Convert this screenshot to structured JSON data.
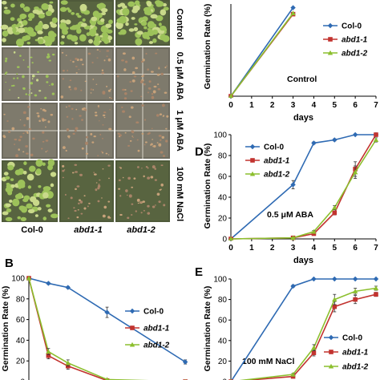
{
  "figure": {
    "plates": {
      "row_labels": [
        "Control",
        "0.5 μM ABA",
        "1 μM ABA",
        "100 mM NaCl"
      ],
      "column_labels": [
        "Col-0",
        "abd1-1",
        "abd1-2"
      ]
    },
    "panels": {
      "B": "B",
      "D": "D",
      "E": "E"
    }
  },
  "colors": {
    "col0": "#2e6ab3",
    "abd1_1": "#c2332f",
    "abd1_2": "#8cbf2e"
  },
  "chart_data": [
    {
      "id": "C",
      "type": "line",
      "title": "",
      "annotation": "Control",
      "xlabel": "days",
      "ylabel": "Germination Rate (%)",
      "xlim": [
        0,
        7
      ],
      "x_ticks": [
        0,
        1,
        2,
        3,
        4,
        5,
        6,
        7
      ],
      "series": [
        {
          "name": "Col-0",
          "x": [
            0,
            3
          ],
          "y": [
            0,
            96
          ]
        },
        {
          "name": "abd1-1",
          "x": [
            0,
            3
          ],
          "y": [
            0,
            89
          ]
        },
        {
          "name": "abd1-2",
          "x": [
            0,
            3
          ],
          "y": [
            0,
            90
          ]
        }
      ]
    },
    {
      "id": "D",
      "type": "line",
      "title": "",
      "annotation": "0.5 μM ABA",
      "xlabel": "days",
      "ylabel": "Germination Rate (%)",
      "xlim": [
        0,
        7
      ],
      "ylim": [
        0,
        100
      ],
      "x_ticks": [
        0,
        1,
        2,
        3,
        4,
        5,
        6,
        7
      ],
      "y_ticks": [
        0,
        20,
        40,
        60,
        80,
        100
      ],
      "series": [
        {
          "name": "Col-0",
          "x": [
            0,
            3,
            4,
            5,
            6,
            7
          ],
          "y": [
            0,
            52,
            92,
            95,
            100,
            100
          ],
          "err": [
            0,
            4,
            1,
            1,
            0,
            0
          ]
        },
        {
          "name": "abd1-1",
          "x": [
            0,
            3,
            4,
            5,
            6,
            7
          ],
          "y": [
            0,
            1,
            5,
            25,
            67,
            100
          ],
          "err": [
            0,
            0,
            1,
            2,
            7,
            0
          ]
        },
        {
          "name": "abd1-2",
          "x": [
            0,
            3,
            4,
            5,
            6,
            7
          ],
          "y": [
            0,
            1,
            7,
            30,
            64,
            95
          ],
          "err": [
            0,
            0,
            1,
            2,
            6,
            2
          ]
        }
      ]
    },
    {
      "id": "B",
      "type": "line",
      "title": "",
      "xlabel": "",
      "ylabel": "Germination Rate (%)",
      "ylim": [
        0,
        100
      ],
      "y_ticks": [
        0,
        20,
        40,
        60,
        80,
        100
      ],
      "series": [
        {
          "name": "Col-0",
          "x": [
            0,
            0.5,
            1,
            2,
            4
          ],
          "y": [
            100,
            95,
            91,
            67,
            19
          ],
          "err": [
            0,
            1,
            1,
            5,
            2
          ]
        },
        {
          "name": "abd1-1",
          "x": [
            0,
            0.5,
            1,
            2,
            4
          ],
          "y": [
            100,
            25,
            15,
            1,
            0
          ],
          "err": [
            0,
            3,
            3,
            0,
            0
          ]
        },
        {
          "name": "abd1-2",
          "x": [
            0,
            0.5,
            1,
            2,
            4
          ],
          "y": [
            100,
            29,
            18,
            2,
            0
          ],
          "err": [
            0,
            3,
            3,
            0,
            0
          ]
        }
      ]
    },
    {
      "id": "E",
      "type": "line",
      "title": "",
      "annotation": "100 mM NaCl",
      "xlabel": "",
      "ylabel": "Germination Rate (%)",
      "ylim": [
        0,
        100
      ],
      "y_ticks": [
        0,
        20,
        40,
        60,
        80,
        100
      ],
      "series": [
        {
          "name": "Col-0",
          "x": [
            0,
            3,
            4,
            5,
            6,
            7
          ],
          "y": [
            0,
            93,
            100,
            100,
            100,
            100
          ],
          "err": [
            0,
            1,
            0,
            0,
            0,
            0
          ]
        },
        {
          "name": "abd1-1",
          "x": [
            0,
            3,
            4,
            5,
            6,
            7
          ],
          "y": [
            0,
            5,
            28,
            73,
            80,
            85
          ],
          "err": [
            0,
            1,
            3,
            5,
            4,
            2
          ]
        },
        {
          "name": "abd1-2",
          "x": [
            0,
            3,
            4,
            5,
            6,
            7
          ],
          "y": [
            0,
            7,
            33,
            80,
            88,
            91
          ],
          "err": [
            0,
            1,
            3,
            5,
            3,
            2
          ]
        }
      ]
    }
  ]
}
